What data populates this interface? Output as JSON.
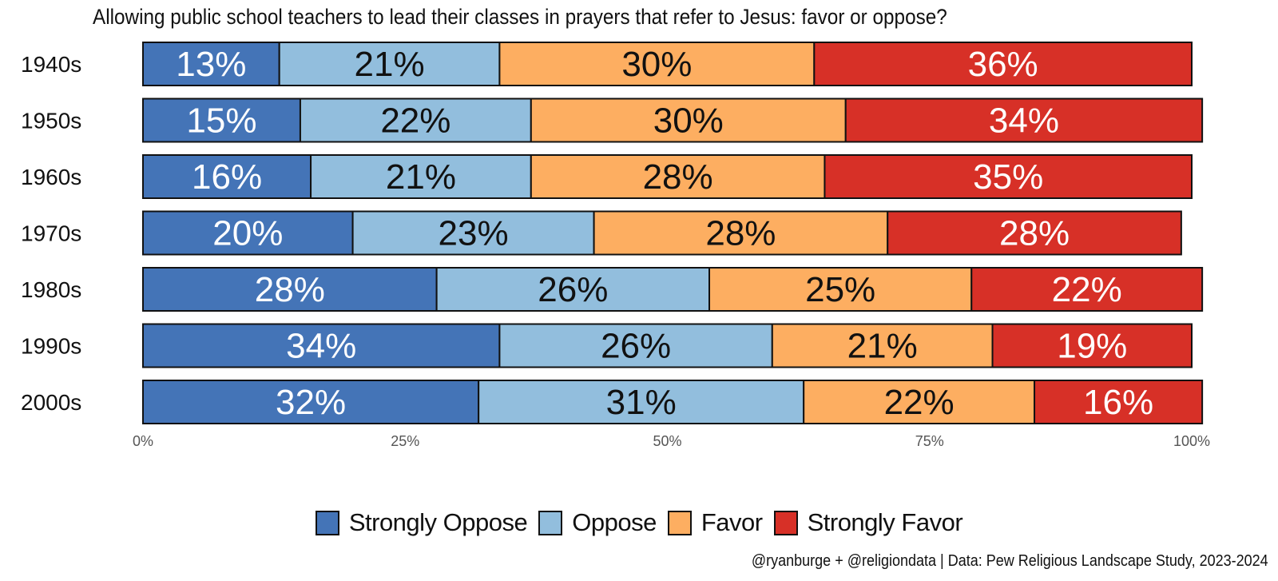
{
  "title": "Allowing public school teachers to lead their classes in prayers that refer to Jesus: favor or oppose?",
  "caption": "@ryanburge + @religiondata | Data: Pew Religious Landscape Study, 2023-2024",
  "colors": {
    "strongly_oppose": "#4474b7",
    "oppose": "#92bedd",
    "favor": "#fdae61",
    "strongly_favor": "#d73027",
    "dark_text": "#111111",
    "light_text": "#ffffff",
    "axis_text": "#555555"
  },
  "chart_data": {
    "type": "bar",
    "orientation": "horizontal",
    "stacked": true,
    "title": "Allowing public school teachers to lead their classes in prayers that refer to Jesus: favor or oppose?",
    "categories": [
      "1940s",
      "1950s",
      "1960s",
      "1970s",
      "1980s",
      "1990s",
      "2000s"
    ],
    "series": [
      {
        "name": "Strongly Oppose",
        "color": "#4474b7",
        "label_color": "#ffffff",
        "values": [
          13,
          15,
          16,
          20,
          28,
          34,
          32
        ]
      },
      {
        "name": "Oppose",
        "color": "#92bedd",
        "label_color": "#111111",
        "values": [
          21,
          22,
          21,
          23,
          26,
          26,
          31
        ]
      },
      {
        "name": "Favor",
        "color": "#fdae61",
        "label_color": "#111111",
        "values": [
          30,
          30,
          28,
          28,
          25,
          21,
          22
        ]
      },
      {
        "name": "Strongly Favor",
        "color": "#d73027",
        "label_color": "#ffffff",
        "values": [
          36,
          34,
          35,
          28,
          22,
          19,
          16
        ]
      }
    ],
    "xlim": [
      0,
      100
    ],
    "xticks": [
      "0%",
      "25%",
      "50%",
      "75%",
      "100%"
    ],
    "xlabel": "",
    "ylabel": "",
    "grid": false,
    "legend_position": "bottom"
  }
}
